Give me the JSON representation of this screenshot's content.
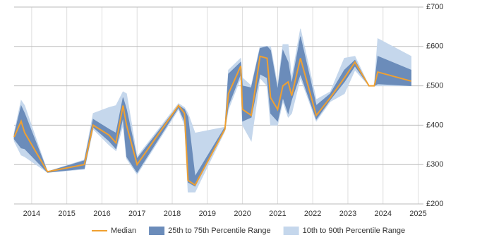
{
  "chart_data": {
    "type": "line-band",
    "x": [
      2013.5,
      2013.7,
      2013.8,
      2014.45,
      2015.5,
      2015.75,
      2016.2,
      2016.4,
      2016.6,
      2016.7,
      2017.0,
      2018.18,
      2018.35,
      2018.45,
      2018.65,
      2019.5,
      2019.6,
      2019.95,
      2020.0,
      2020.25,
      2020.5,
      2020.7,
      2020.8,
      2021.0,
      2021.15,
      2021.3,
      2021.4,
      2021.65,
      2022.1,
      2022.5,
      2022.9,
      2023.2,
      2023.6,
      2023.75,
      2023.85,
      2024.8
    ],
    "series": [
      {
        "name": "Median",
        "color": "#f0a030",
        "values": [
          370,
          410,
          381,
          282,
          300,
          400,
          375,
          355,
          450,
          400,
          300,
          450,
          430,
          260,
          248,
          390,
          480,
          550,
          440,
          425,
          575,
          570,
          470,
          440,
          500,
          510,
          475,
          570,
          425,
          470,
          520,
          560,
          500,
          500,
          535,
          512
        ]
      },
      {
        "name": "25th to 75th Percentile Range",
        "color": "#6b8cba",
        "low": [
          365,
          342,
          340,
          280,
          290,
          395,
          360,
          340,
          420,
          320,
          280,
          445,
          410,
          255,
          245,
          390,
          450,
          530,
          410,
          420,
          530,
          520,
          430,
          410,
          470,
          430,
          465,
          530,
          415,
          465,
          510,
          550,
          500,
          500,
          505,
          500
        ],
        "high": [
          375,
          449,
          430,
          282,
          310,
          415,
          390,
          380,
          470,
          440,
          315,
          450,
          440,
          420,
          270,
          395,
          530,
          560,
          500,
          495,
          595,
          600,
          590,
          490,
          590,
          560,
          505,
          625,
          450,
          480,
          540,
          565,
          500,
          500,
          575,
          540
        ]
      },
      {
        "name": "10th to 90th Percentile Range",
        "color": "#c5d7ec",
        "low": [
          360,
          324,
          320,
          280,
          288,
          390,
          350,
          335,
          400,
          315,
          275,
          440,
          400,
          230,
          230,
          385,
          440,
          520,
          400,
          360,
          520,
          500,
          400,
          400,
          460,
          420,
          430,
          520,
          410,
          460,
          480,
          540,
          500,
          500,
          500,
          500
        ],
        "high": [
          380,
          463,
          450,
          282,
          312,
          430,
          445,
          450,
          485,
          480,
          320,
          455,
          445,
          430,
          380,
          395,
          540,
          570,
          520,
          500,
          600,
          600,
          600,
          500,
          605,
          605,
          520,
          645,
          465,
          485,
          570,
          575,
          500,
          500,
          620,
          575
        ]
      }
    ],
    "xlim": [
      2013.5,
      2025.15
    ],
    "xticks": [
      2014,
      2015,
      2016,
      2017,
      2018,
      2019,
      2020,
      2021,
      2022,
      2023,
      2024,
      2025
    ],
    "ylim": [
      200,
      700
    ],
    "yticks": [
      {
        "value": 200,
        "label": "£200"
      },
      {
        "value": 300,
        "label": "£300"
      },
      {
        "value": 400,
        "label": "£400"
      },
      {
        "value": 500,
        "label": "£500"
      },
      {
        "value": 600,
        "label": "£600"
      },
      {
        "value": 700,
        "label": "£700"
      }
    ],
    "grid": true
  }
}
